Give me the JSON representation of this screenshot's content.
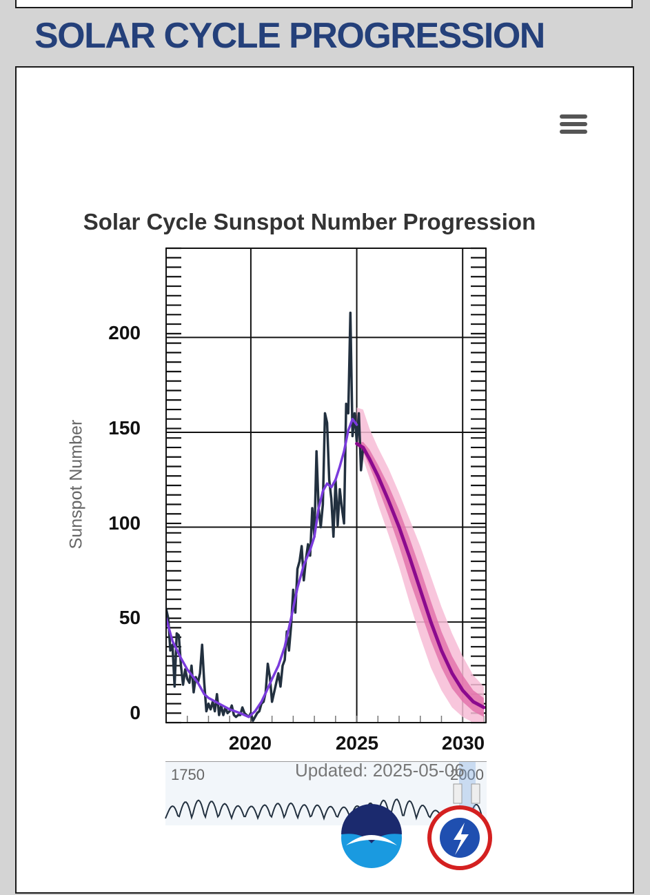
{
  "page": {
    "heading": "SOLAR CYCLE PROGRESSION"
  },
  "colors": {
    "heading": "#24407a",
    "observed": "#22303f",
    "smoothed": "#7a3bdc",
    "predicted": "#8b0a8e",
    "band_inner": "#e373ac",
    "band_outer": "#f7bcd6"
  },
  "icons": {
    "menu": "hamburger-menu-icon",
    "noaa": "noaa-logo-icon",
    "nws": "national-weather-service-logo-icon"
  },
  "navigator": {
    "start_label": "1750",
    "end_label": "2000",
    "updated_text": "Updated: 2025-05-06"
  },
  "chart_data": {
    "type": "line",
    "title": "Solar Cycle Sunspot Number Progression",
    "ylabel": "Sunspot Number",
    "xlabel": "",
    "xlim": [
      2016.0,
      2031.1
    ],
    "ylim": [
      -3,
      247
    ],
    "x_ticks": [
      2020,
      2025,
      2030
    ],
    "y_ticks": [
      0,
      50,
      100,
      150,
      200
    ],
    "grid": true,
    "legend": "none",
    "series": [
      {
        "key": "observed",
        "points": [
          [
            2016.0,
            57
          ],
          [
            2016.1,
            52
          ],
          [
            2016.2,
            35
          ],
          [
            2016.3,
            38
          ],
          [
            2016.4,
            16
          ],
          [
            2016.5,
            44
          ],
          [
            2016.6,
            43
          ],
          [
            2016.7,
            27
          ],
          [
            2016.8,
            17
          ],
          [
            2016.9,
            25
          ],
          [
            2017.0,
            20
          ],
          [
            2017.1,
            18
          ],
          [
            2017.2,
            27
          ],
          [
            2017.3,
            13
          ],
          [
            2017.4,
            21
          ],
          [
            2017.5,
            18
          ],
          [
            2017.6,
            23
          ],
          [
            2017.7,
            38
          ],
          [
            2017.8,
            18
          ],
          [
            2017.9,
            3
          ],
          [
            2018.0,
            7
          ],
          [
            2018.1,
            4
          ],
          [
            2018.2,
            8
          ],
          [
            2018.3,
            3
          ],
          [
            2018.4,
            12
          ],
          [
            2018.5,
            1
          ],
          [
            2018.6,
            6
          ],
          [
            2018.7,
            1
          ],
          [
            2018.8,
            5
          ],
          [
            2018.9,
            2
          ],
          [
            2019.0,
            3
          ],
          [
            2019.1,
            6
          ],
          [
            2019.2,
            1
          ],
          [
            2019.3,
            0
          ],
          [
            2019.4,
            1
          ],
          [
            2019.5,
            1
          ],
          [
            2019.6,
            5
          ],
          [
            2019.7,
            2
          ],
          [
            2019.8,
            1
          ],
          [
            2019.9,
            0
          ],
          [
            2020.0,
            2
          ],
          [
            2020.1,
            -2
          ],
          [
            2020.2,
            0
          ],
          [
            2020.3,
            2
          ],
          [
            2020.4,
            3
          ],
          [
            2020.5,
            7
          ],
          [
            2020.6,
            8
          ],
          [
            2020.7,
            13
          ],
          [
            2020.8,
            28
          ],
          [
            2020.9,
            21
          ],
          [
            2021.0,
            8
          ],
          [
            2021.1,
            13
          ],
          [
            2021.2,
            18
          ],
          [
            2021.3,
            23
          ],
          [
            2021.4,
            16
          ],
          [
            2021.5,
            27
          ],
          [
            2021.6,
            30
          ],
          [
            2021.7,
            45
          ],
          [
            2021.8,
            35
          ],
          [
            2021.9,
            48
          ],
          [
            2022.0,
            67
          ],
          [
            2022.1,
            55
          ],
          [
            2022.2,
            78
          ],
          [
            2022.3,
            82
          ],
          [
            2022.4,
            90
          ],
          [
            2022.5,
            72
          ],
          [
            2022.6,
            83
          ],
          [
            2022.7,
            91
          ],
          [
            2022.8,
            85
          ],
          [
            2022.9,
            110
          ],
          [
            2023.0,
            95
          ],
          [
            2023.1,
            140
          ],
          [
            2023.2,
            110
          ],
          [
            2023.3,
            100
          ],
          [
            2023.4,
            112
          ],
          [
            2023.5,
            160
          ],
          [
            2023.6,
            155
          ],
          [
            2023.7,
            125
          ],
          [
            2023.8,
            115
          ],
          [
            2023.9,
            95
          ],
          [
            2024.0,
            125
          ],
          [
            2024.1,
            101
          ],
          [
            2024.2,
            120
          ],
          [
            2024.3,
            110
          ],
          [
            2024.4,
            102
          ],
          [
            2024.5,
            165
          ],
          [
            2024.6,
            160
          ],
          [
            2024.7,
            213
          ],
          [
            2024.8,
            148
          ],
          [
            2024.9,
            160
          ],
          [
            2025.0,
            145
          ],
          [
            2025.1,
            160
          ],
          [
            2025.2,
            130
          ],
          [
            2025.3,
            142
          ]
        ]
      },
      {
        "key": "smoothed",
        "points": [
          [
            2016.0,
            52
          ],
          [
            2016.3,
            40
          ],
          [
            2016.7,
            31
          ],
          [
            2017.0,
            25
          ],
          [
            2017.5,
            18
          ],
          [
            2017.8,
            12
          ],
          [
            2018.0,
            10
          ],
          [
            2018.5,
            7
          ],
          [
            2019.0,
            4
          ],
          [
            2019.5,
            2
          ],
          [
            2019.9,
            0
          ],
          [
            2020.2,
            3
          ],
          [
            2020.5,
            8
          ],
          [
            2020.8,
            15
          ],
          [
            2021.0,
            20
          ],
          [
            2021.3,
            27
          ],
          [
            2021.6,
            37
          ],
          [
            2021.9,
            52
          ],
          [
            2022.2,
            68
          ],
          [
            2022.5,
            80
          ],
          [
            2022.8,
            88
          ],
          [
            2023.0,
            95
          ],
          [
            2023.2,
            110
          ],
          [
            2023.4,
            119
          ],
          [
            2023.6,
            123
          ],
          [
            2023.8,
            121
          ],
          [
            2024.0,
            125
          ],
          [
            2024.2,
            132
          ],
          [
            2024.4,
            140
          ],
          [
            2024.6,
            151
          ],
          [
            2024.8,
            157
          ],
          [
            2025.0,
            154
          ]
        ]
      },
      {
        "key": "predicted",
        "x": [
          2025.0,
          2025.3,
          2025.6,
          2026.0,
          2026.5,
          2027.0,
          2027.5,
          2028.0,
          2028.5,
          2029.0,
          2029.5,
          2030.0,
          2030.5,
          2031.0
        ],
        "values": [
          144,
          142,
          136,
          127,
          114,
          100,
          84,
          67,
          50,
          35,
          23,
          14,
          8,
          5
        ],
        "band_inner_low": [
          144,
          140,
          132,
          121,
          106,
          90,
          72,
          56,
          40,
          26,
          15,
          8,
          3,
          0
        ],
        "band_inner_high": [
          144,
          145,
          141,
          133,
          122,
          109,
          94,
          78,
          61,
          45,
          32,
          22,
          14,
          10
        ],
        "band_outer_low": [
          144,
          136,
          126,
          112,
          96,
          79,
          60,
          42,
          26,
          14,
          5,
          0,
          -3,
          -3
        ],
        "band_outer_high": [
          163,
          162,
          152,
          142,
          131,
          118,
          104,
          90,
          74,
          58,
          44,
          32,
          22,
          16
        ]
      }
    ],
    "navigator_series": {
      "x_range": [
        1750,
        2025
      ],
      "note_cycles": 24
    }
  }
}
